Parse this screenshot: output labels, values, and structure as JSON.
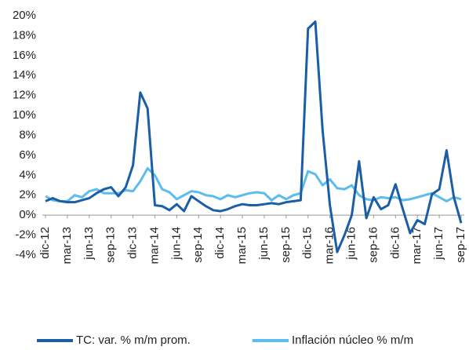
{
  "chart_data": {
    "type": "line",
    "categories": [
      "dic-12",
      null,
      null,
      "mar-13",
      null,
      null,
      "jun-13",
      null,
      null,
      "sep-13",
      null,
      null,
      "dic-13",
      null,
      null,
      "mar-14",
      null,
      null,
      "jun-14",
      null,
      null,
      "sep-14",
      null,
      null,
      "dic-14",
      null,
      null,
      "mar-15",
      null,
      null,
      "jun-15",
      null,
      null,
      "sep-15",
      null,
      null,
      "dic-15",
      null,
      null,
      "mar-16",
      null,
      null,
      "jun-16",
      null,
      null,
      "sep-16",
      null,
      null,
      "dic-16",
      null,
      null,
      "mar-17",
      null,
      null,
      "jun-17",
      null,
      null,
      "sep-17"
    ],
    "series": [
      {
        "name": "TC: var. % m/m prom.",
        "color": "#1b5ea6",
        "values": [
          1.4,
          1.7,
          1.4,
          1.3,
          1.3,
          1.5,
          1.7,
          2.2,
          2.6,
          2.8,
          1.9,
          2.8,
          5.0,
          12.3,
          10.7,
          1.0,
          0.9,
          0.5,
          1.1,
          0.4,
          1.9,
          1.4,
          0.9,
          0.5,
          0.4,
          0.6,
          0.9,
          1.1,
          1.0,
          1.0,
          1.1,
          1.2,
          1.1,
          1.3,
          1.4,
          1.5,
          18.7,
          19.4,
          8.5,
          1.0,
          -3.7,
          -2.0,
          0.0,
          5.4,
          -0.3,
          1.8,
          0.6,
          1.0,
          3.1,
          0.6,
          -1.8,
          -0.5,
          -0.9,
          2.1,
          2.6,
          6.5,
          1.8,
          -0.8
        ]
      },
      {
        "name": "Inflación núcleo % m/m",
        "color": "#5bbcee",
        "values": [
          1.9,
          1.5,
          1.4,
          1.4,
          2.0,
          1.8,
          2.4,
          2.6,
          2.2,
          2.2,
          2.2,
          2.5,
          2.4,
          3.4,
          4.7,
          4.0,
          2.6,
          2.3,
          1.6,
          2.0,
          2.4,
          2.3,
          2.0,
          1.9,
          1.6,
          2.0,
          1.8,
          2.0,
          2.2,
          2.3,
          2.2,
          1.5,
          2.0,
          1.6,
          2.0,
          2.2,
          4.4,
          4.1,
          3.0,
          3.6,
          2.7,
          2.6,
          3.0,
          2.0,
          1.6,
          1.5,
          1.8,
          1.7,
          1.8,
          1.5,
          1.6,
          1.8,
          2.0,
          2.2,
          1.8,
          1.4,
          1.8,
          1.6
        ]
      }
    ],
    "ylim": [
      -4,
      20
    ],
    "yticks": [
      {
        "value": -4,
        "label": "-4%"
      },
      {
        "value": -2,
        "label": "-2%"
      },
      {
        "value": 0,
        "label": "0%"
      },
      {
        "value": 2,
        "label": "2%"
      },
      {
        "value": 4,
        "label": "4%"
      },
      {
        "value": 6,
        "label": "6%"
      },
      {
        "value": 8,
        "label": "8%"
      },
      {
        "value": 10,
        "label": "10%"
      },
      {
        "value": 12,
        "label": "12%"
      },
      {
        "value": 14,
        "label": "14%"
      },
      {
        "value": 16,
        "label": "16%"
      },
      {
        "value": 18,
        "label": "18%"
      },
      {
        "value": 20,
        "label": "20%"
      }
    ],
    "legend": "bottom"
  }
}
